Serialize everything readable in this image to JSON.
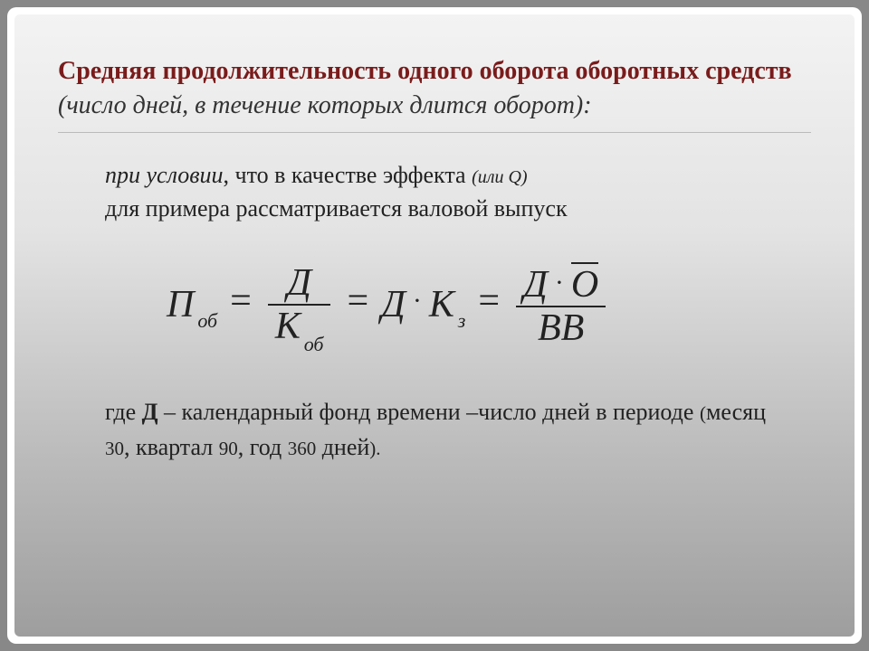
{
  "slide": {
    "title_bold": "Средняя продолжительность одного оборота оборотных средств",
    "title_italic": " (число дней, в течение которых длится оборот):",
    "title_color": "#7a1b1b",
    "condition_pre": "при условии",
    "condition_mid": ", что в качестве эффекта  ",
    "condition_q": "(или Q)",
    "condition_line2": "для примера рассматривается валовой выпуск",
    "formula": {
      "P": "П",
      "P_sub": "об",
      "D": "Д",
      "K": "К",
      "K_sub_ob": "об",
      "K_sub_z": "з",
      "O": "О",
      "BB": "ВВ",
      "eq": "=",
      "dot": "·"
    },
    "explain_pre": "где ",
    "explain_D": "Д",
    "explain_dash1": " – календарный фонд времени –число дней в периоде ",
    "explain_paren_open": "(",
    "explain_month": "месяц ",
    "explain_30": "30",
    "explain_comma1": ", ",
    "explain_quarter": "квартал ",
    "explain_90": "90",
    "explain_comma2": ", ",
    "explain_year": "год ",
    "explain_360": "360",
    "explain_days": " дней",
    "explain_paren_close": ").",
    "bg_gradient_top": "#f3f3f3",
    "bg_gradient_bottom": "#9e9e9e",
    "text_color": "#222222",
    "font_family": "Georgia, Times New Roman, serif",
    "title_fontsize": 28,
    "body_fontsize": 26,
    "formula_fontsize": 42,
    "sub_fontsize": 22
  }
}
